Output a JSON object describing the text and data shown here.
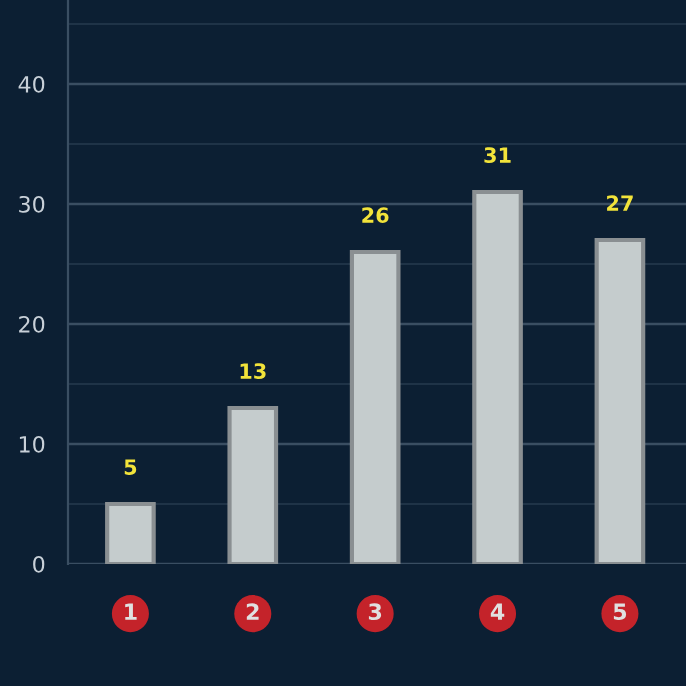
{
  "chart_data": {
    "type": "bar",
    "categories": [
      "1",
      "2",
      "3",
      "4",
      "5"
    ],
    "series": [
      {
        "color": "#c5cccd",
        "values": [
          5,
          13,
          26,
          31,
          27
        ]
      }
    ],
    "data_labels": true,
    "ylim": [
      0,
      47
    ],
    "yticks": [
      0,
      {
        "value": 5,
        "label": null
      },
      10,
      {
        "value": 15,
        "label": null
      },
      20,
      {
        "value": 25,
        "label": null
      },
      30,
      {
        "value": 35,
        "label": null
      },
      40,
      {
        "value": 45,
        "label": null
      }
    ],
    "grid": "y",
    "legend": false
  }
}
